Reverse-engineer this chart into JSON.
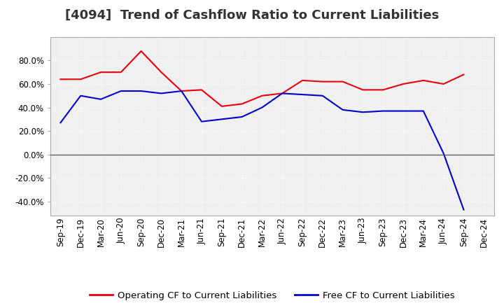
{
  "title": "[4094]  Trend of Cashflow Ratio to Current Liabilities",
  "x_labels": [
    "Sep-19",
    "Dec-19",
    "Mar-20",
    "Jun-20",
    "Sep-20",
    "Dec-20",
    "Mar-21",
    "Jun-21",
    "Sep-21",
    "Dec-21",
    "Mar-22",
    "Jun-22",
    "Sep-22",
    "Dec-22",
    "Mar-23",
    "Jun-23",
    "Sep-23",
    "Dec-23",
    "Mar-24",
    "Jun-24",
    "Sep-24",
    "Dec-24"
  ],
  "operating_cf": [
    0.64,
    0.64,
    0.7,
    0.7,
    0.88,
    0.7,
    0.54,
    0.55,
    0.41,
    0.43,
    0.5,
    0.52,
    0.63,
    0.62,
    0.62,
    0.55,
    0.55,
    0.6,
    0.63,
    0.6,
    0.68,
    null
  ],
  "free_cf": [
    0.27,
    0.5,
    0.47,
    0.54,
    0.54,
    0.52,
    0.54,
    0.28,
    0.3,
    0.32,
    0.4,
    0.52,
    0.51,
    0.5,
    0.38,
    0.36,
    0.37,
    0.37,
    0.37,
    0.01,
    -0.47,
    null
  ],
  "operating_color": "#e8000d",
  "free_color": "#0000cd",
  "background_color": "#ffffff",
  "plot_bg_color": "#f0f0f0",
  "grid_color": "#ffffff",
  "ylim": [
    -0.52,
    1.0
  ],
  "yticks": [
    -0.4,
    -0.2,
    0.0,
    0.2,
    0.4,
    0.6,
    0.8
  ],
  "legend_op": "Operating CF to Current Liabilities",
  "legend_free": "Free CF to Current Liabilities",
  "title_fontsize": 13,
  "axis_fontsize": 8.5,
  "legend_fontsize": 9.5
}
